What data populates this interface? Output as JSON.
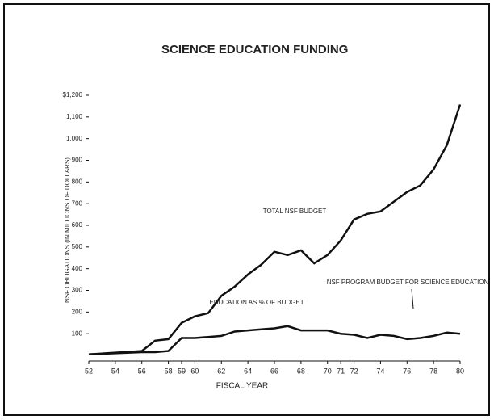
{
  "chart_data": {
    "type": "line",
    "title": "SCIENCE EDUCATION FUNDING",
    "y_label": "NSF OBLIGATIONS (IN MILLIONS OF DOLLARS)",
    "x_label": "FISCAL YEAR",
    "x": [
      52,
      56,
      57,
      58,
      59,
      60,
      61,
      62,
      63,
      64,
      65,
      66,
      67,
      68,
      69,
      70,
      71,
      72,
      73,
      74,
      75,
      76,
      77,
      78,
      79,
      80
    ],
    "series": [
      {
        "name": "TOTAL NSF BUDGET",
        "color": "#111",
        "values": [
          5,
          20,
          68,
          75,
          150,
          180,
          195,
          275,
          317,
          373,
          418,
          478,
          463,
          485,
          425,
          463,
          530,
          627,
          653,
          664,
          709,
          754,
          784,
          858,
          970,
          1157
        ]
      },
      {
        "name": "NSF PROGRAM BUDGET FOR SCIENCE EDUCATION",
        "color": "#111",
        "values": [
          5,
          15,
          15,
          20,
          80,
          80,
          85,
          90,
          110,
          115,
          120,
          125,
          135,
          115,
          115,
          115,
          100,
          95,
          80,
          95,
          90,
          75,
          80,
          90,
          105,
          100
        ]
      }
    ],
    "annotations": [
      "EDUCATION AS % OF BUDGET"
    ],
    "xlim": [
      52,
      80
    ],
    "xticks": [
      52,
      54,
      56,
      58,
      59,
      60,
      62,
      64,
      66,
      68,
      70,
      71,
      72,
      74,
      76,
      78,
      80
    ],
    "ylim": [
      0,
      1200
    ],
    "yticks": [
      100,
      200,
      300,
      400,
      500,
      600,
      700,
      800,
      900,
      {
        "value": 1000,
        "label": "1,000"
      },
      {
        "value": 1100,
        "label": "1,100"
      },
      {
        "value": 1200,
        "label": "$1,200"
      }
    ]
  }
}
